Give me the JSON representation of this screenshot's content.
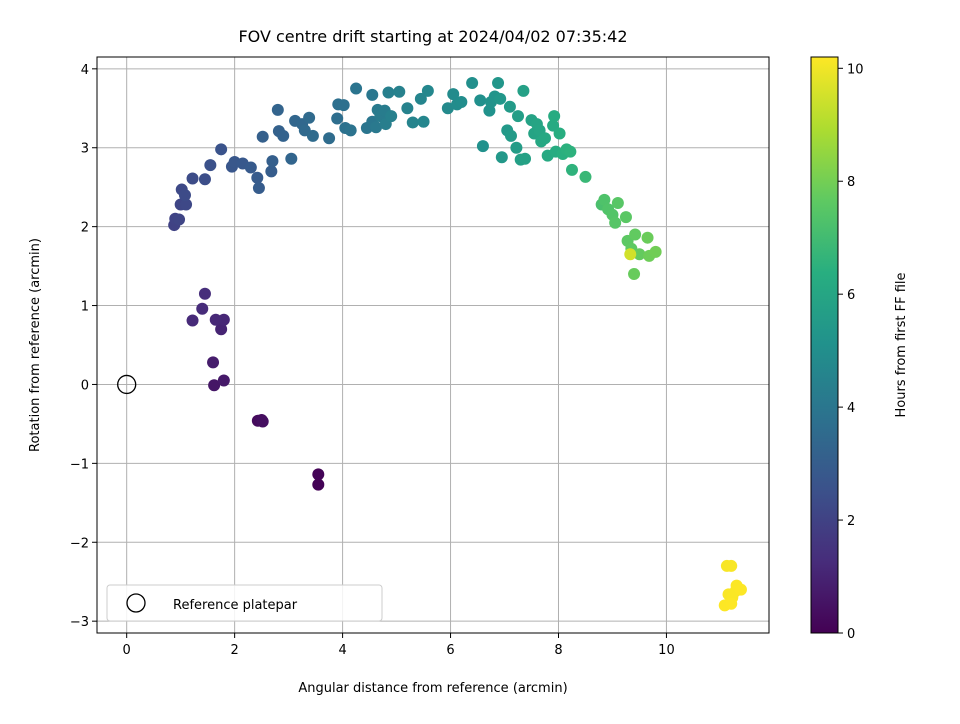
{
  "chart_data": {
    "type": "scatter",
    "title": "FOV centre drift starting at 2024/04/02 07:35:42",
    "xlabel": "Angular distance from reference (arcmin)",
    "ylabel": "Rotation from reference (arcmin)",
    "xlim": [
      -0.55,
      11.9
    ],
    "ylim": [
      -3.15,
      4.15
    ],
    "xticks": [
      0,
      2,
      4,
      6,
      8,
      10
    ],
    "yticks": [
      -3,
      -2,
      -1,
      0,
      1,
      2,
      3,
      4
    ],
    "grid": true,
    "legend": {
      "position": "lower-left",
      "entries": [
        "Reference platepar"
      ]
    },
    "reference_point": {
      "x": 0,
      "y": 0,
      "label": "Reference platepar"
    },
    "colorbar": {
      "label": "Hours from first FF file",
      "range": [
        0,
        10.2
      ],
      "ticks": [
        0,
        2,
        4,
        6,
        8,
        10
      ],
      "colormap": "viridis"
    },
    "points": [
      {
        "x": 3.55,
        "y": -1.27,
        "h": 0.05
      },
      {
        "x": 3.55,
        "y": -1.14,
        "h": 0.1
      },
      {
        "x": 2.43,
        "y": -0.46,
        "h": 0.3
      },
      {
        "x": 2.5,
        "y": -0.45,
        "h": 0.35
      },
      {
        "x": 2.52,
        "y": -0.47,
        "h": 0.4
      },
      {
        "x": 1.62,
        "y": -0.01,
        "h": 0.6
      },
      {
        "x": 1.8,
        "y": 0.05,
        "h": 0.7
      },
      {
        "x": 1.6,
        "y": 0.28,
        "h": 0.8
      },
      {
        "x": 1.75,
        "y": 0.7,
        "h": 1.0
      },
      {
        "x": 1.8,
        "y": 0.82,
        "h": 1.1
      },
      {
        "x": 1.65,
        "y": 0.82,
        "h": 1.15
      },
      {
        "x": 1.22,
        "y": 0.81,
        "h": 1.2
      },
      {
        "x": 1.4,
        "y": 0.96,
        "h": 1.25
      },
      {
        "x": 1.45,
        "y": 1.15,
        "h": 1.3
      },
      {
        "x": 0.88,
        "y": 2.02,
        "h": 2.0
      },
      {
        "x": 0.9,
        "y": 2.1,
        "h": 2.05
      },
      {
        "x": 0.97,
        "y": 2.09,
        "h": 2.1
      },
      {
        "x": 1.0,
        "y": 2.28,
        "h": 2.15
      },
      {
        "x": 1.1,
        "y": 2.28,
        "h": 2.2
      },
      {
        "x": 1.02,
        "y": 2.47,
        "h": 2.25
      },
      {
        "x": 1.08,
        "y": 2.4,
        "h": 2.3
      },
      {
        "x": 1.22,
        "y": 2.61,
        "h": 2.35
      },
      {
        "x": 1.45,
        "y": 2.6,
        "h": 2.4
      },
      {
        "x": 1.55,
        "y": 2.78,
        "h": 2.5
      },
      {
        "x": 1.75,
        "y": 2.98,
        "h": 2.6
      },
      {
        "x": 1.95,
        "y": 2.76,
        "h": 2.7
      },
      {
        "x": 2.0,
        "y": 2.82,
        "h": 2.75
      },
      {
        "x": 2.15,
        "y": 2.8,
        "h": 2.8
      },
      {
        "x": 2.3,
        "y": 2.75,
        "h": 2.85
      },
      {
        "x": 2.42,
        "y": 2.62,
        "h": 2.9
      },
      {
        "x": 2.45,
        "y": 2.49,
        "h": 2.95
      },
      {
        "x": 2.68,
        "y": 2.7,
        "h": 3.0
      },
      {
        "x": 2.7,
        "y": 2.83,
        "h": 3.05
      },
      {
        "x": 2.52,
        "y": 3.14,
        "h": 3.1
      },
      {
        "x": 2.82,
        "y": 3.21,
        "h": 3.15
      },
      {
        "x": 2.9,
        "y": 3.15,
        "h": 3.2
      },
      {
        "x": 2.8,
        "y": 3.48,
        "h": 3.25
      },
      {
        "x": 3.05,
        "y": 2.86,
        "h": 3.3
      },
      {
        "x": 3.12,
        "y": 3.34,
        "h": 3.35
      },
      {
        "x": 3.25,
        "y": 3.3,
        "h": 3.4
      },
      {
        "x": 3.3,
        "y": 3.22,
        "h": 3.45
      },
      {
        "x": 3.38,
        "y": 3.38,
        "h": 3.5
      },
      {
        "x": 3.45,
        "y": 3.15,
        "h": 3.55
      },
      {
        "x": 3.75,
        "y": 3.12,
        "h": 3.6
      },
      {
        "x": 3.9,
        "y": 3.37,
        "h": 3.65
      },
      {
        "x": 3.92,
        "y": 3.55,
        "h": 3.7
      },
      {
        "x": 4.02,
        "y": 3.54,
        "h": 3.75
      },
      {
        "x": 4.05,
        "y": 3.25,
        "h": 3.8
      },
      {
        "x": 4.15,
        "y": 3.22,
        "h": 3.85
      },
      {
        "x": 4.25,
        "y": 3.75,
        "h": 3.9
      },
      {
        "x": 4.45,
        "y": 3.25,
        "h": 3.95
      },
      {
        "x": 4.55,
        "y": 3.33,
        "h": 4.0
      },
      {
        "x": 4.55,
        "y": 3.67,
        "h": 4.05
      },
      {
        "x": 4.62,
        "y": 3.26,
        "h": 4.1
      },
      {
        "x": 4.65,
        "y": 3.48,
        "h": 4.15
      },
      {
        "x": 4.7,
        "y": 3.4,
        "h": 4.2
      },
      {
        "x": 4.78,
        "y": 3.47,
        "h": 4.25
      },
      {
        "x": 4.8,
        "y": 3.3,
        "h": 4.3
      },
      {
        "x": 4.85,
        "y": 3.7,
        "h": 4.35
      },
      {
        "x": 4.9,
        "y": 3.4,
        "h": 4.4
      },
      {
        "x": 5.05,
        "y": 3.71,
        "h": 4.45
      },
      {
        "x": 5.2,
        "y": 3.5,
        "h": 4.5
      },
      {
        "x": 5.3,
        "y": 3.32,
        "h": 4.55
      },
      {
        "x": 5.45,
        "y": 3.62,
        "h": 4.6
      },
      {
        "x": 5.5,
        "y": 3.33,
        "h": 4.65
      },
      {
        "x": 5.58,
        "y": 3.72,
        "h": 4.7
      },
      {
        "x": 5.95,
        "y": 3.5,
        "h": 4.8
      },
      {
        "x": 6.05,
        "y": 3.68,
        "h": 4.85
      },
      {
        "x": 6.12,
        "y": 3.55,
        "h": 4.9
      },
      {
        "x": 6.2,
        "y": 3.58,
        "h": 4.95
      },
      {
        "x": 6.4,
        "y": 3.82,
        "h": 5.0
      },
      {
        "x": 6.55,
        "y": 3.6,
        "h": 5.05
      },
      {
        "x": 6.6,
        "y": 3.02,
        "h": 5.1
      },
      {
        "x": 6.72,
        "y": 3.47,
        "h": 5.15
      },
      {
        "x": 6.75,
        "y": 3.58,
        "h": 5.2
      },
      {
        "x": 6.82,
        "y": 3.65,
        "h": 5.25
      },
      {
        "x": 6.88,
        "y": 3.82,
        "h": 5.3
      },
      {
        "x": 6.92,
        "y": 3.62,
        "h": 5.35
      },
      {
        "x": 6.95,
        "y": 2.88,
        "h": 5.4
      },
      {
        "x": 7.05,
        "y": 3.22,
        "h": 5.45
      },
      {
        "x": 7.1,
        "y": 3.52,
        "h": 5.5
      },
      {
        "x": 7.12,
        "y": 3.15,
        "h": 5.55
      },
      {
        "x": 7.22,
        "y": 3.0,
        "h": 5.6
      },
      {
        "x": 7.25,
        "y": 3.4,
        "h": 5.65
      },
      {
        "x": 7.3,
        "y": 2.85,
        "h": 5.7
      },
      {
        "x": 7.35,
        "y": 3.72,
        "h": 5.75
      },
      {
        "x": 7.38,
        "y": 2.86,
        "h": 5.8
      },
      {
        "x": 7.5,
        "y": 3.35,
        "h": 5.85
      },
      {
        "x": 7.55,
        "y": 3.18,
        "h": 5.9
      },
      {
        "x": 7.6,
        "y": 3.3,
        "h": 5.95
      },
      {
        "x": 7.65,
        "y": 3.22,
        "h": 6.0
      },
      {
        "x": 7.68,
        "y": 3.08,
        "h": 6.05
      },
      {
        "x": 7.75,
        "y": 3.12,
        "h": 6.1
      },
      {
        "x": 7.8,
        "y": 2.9,
        "h": 6.15
      },
      {
        "x": 7.9,
        "y": 3.28,
        "h": 6.2
      },
      {
        "x": 7.92,
        "y": 3.4,
        "h": 6.25
      },
      {
        "x": 7.95,
        "y": 2.95,
        "h": 6.3
      },
      {
        "x": 8.02,
        "y": 3.18,
        "h": 6.35
      },
      {
        "x": 8.08,
        "y": 2.92,
        "h": 6.4
      },
      {
        "x": 8.15,
        "y": 2.98,
        "h": 6.45
      },
      {
        "x": 8.22,
        "y": 2.95,
        "h": 6.5
      },
      {
        "x": 8.25,
        "y": 2.72,
        "h": 6.55
      },
      {
        "x": 8.5,
        "y": 2.63,
        "h": 6.8
      },
      {
        "x": 8.8,
        "y": 2.28,
        "h": 7.2
      },
      {
        "x": 8.85,
        "y": 2.34,
        "h": 7.3
      },
      {
        "x": 8.92,
        "y": 2.22,
        "h": 7.35
      },
      {
        "x": 9.0,
        "y": 2.15,
        "h": 7.4
      },
      {
        "x": 9.05,
        "y": 2.05,
        "h": 7.45
      },
      {
        "x": 9.1,
        "y": 2.3,
        "h": 7.5
      },
      {
        "x": 9.25,
        "y": 2.12,
        "h": 7.55
      },
      {
        "x": 9.28,
        "y": 1.82,
        "h": 7.6
      },
      {
        "x": 9.35,
        "y": 1.72,
        "h": 7.65
      },
      {
        "x": 9.42,
        "y": 1.9,
        "h": 7.7
      },
      {
        "x": 9.5,
        "y": 1.65,
        "h": 7.75
      },
      {
        "x": 9.4,
        "y": 1.4,
        "h": 7.8
      },
      {
        "x": 9.65,
        "y": 1.86,
        "h": 7.85
      },
      {
        "x": 9.68,
        "y": 1.63,
        "h": 7.9
      },
      {
        "x": 9.8,
        "y": 1.68,
        "h": 7.95
      },
      {
        "x": 9.33,
        "y": 1.65,
        "h": 9.5
      },
      {
        "x": 11.12,
        "y": -2.3,
        "h": 10.1
      },
      {
        "x": 11.2,
        "y": -2.3,
        "h": 10.12
      },
      {
        "x": 11.15,
        "y": -2.66,
        "h": 10.14
      },
      {
        "x": 11.22,
        "y": -2.7,
        "h": 10.15
      },
      {
        "x": 11.28,
        "y": -2.62,
        "h": 10.16
      },
      {
        "x": 11.3,
        "y": -2.55,
        "h": 10.17
      },
      {
        "x": 11.38,
        "y": -2.6,
        "h": 10.18
      },
      {
        "x": 11.08,
        "y": -2.8,
        "h": 10.19
      },
      {
        "x": 11.2,
        "y": -2.78,
        "h": 10.2
      }
    ]
  }
}
